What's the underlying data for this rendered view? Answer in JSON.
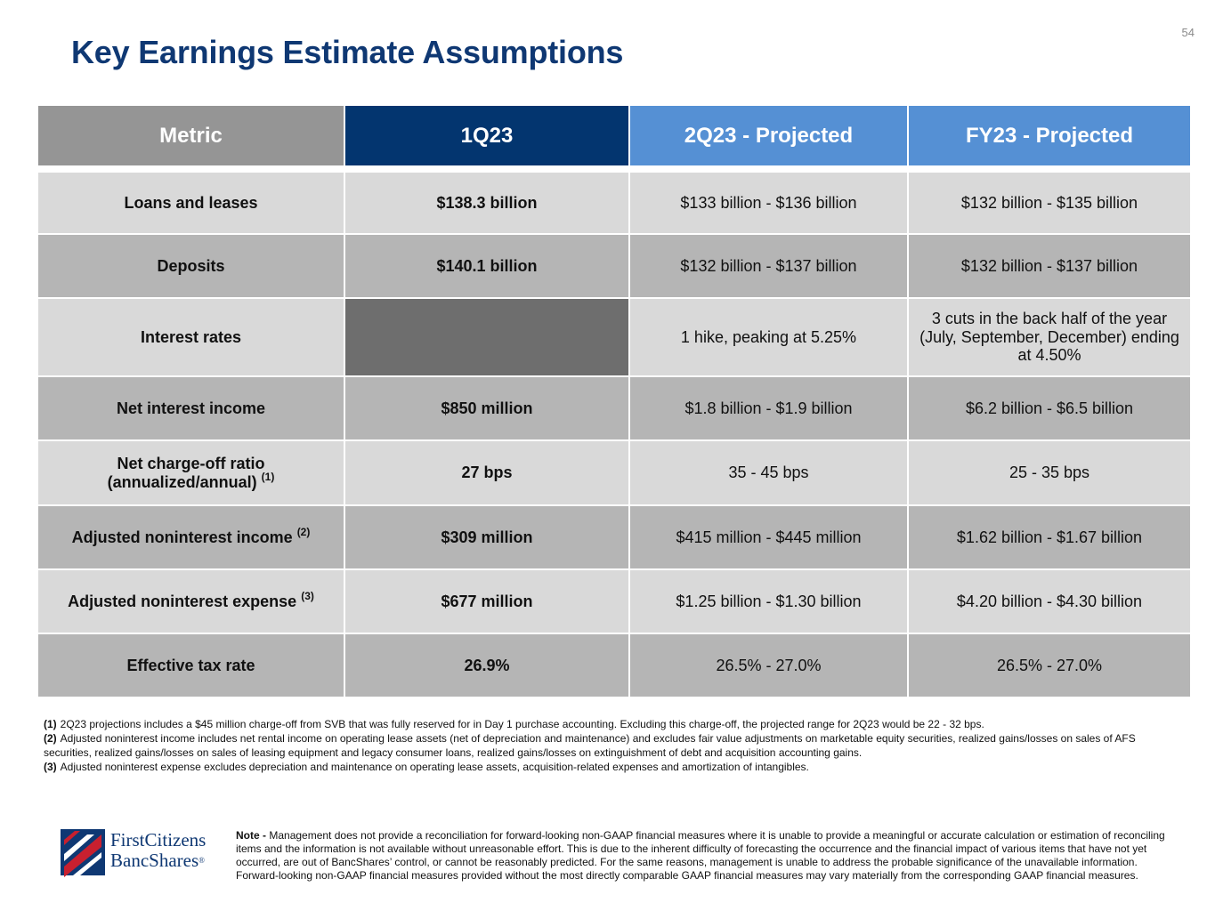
{
  "page_number": "54",
  "title": "Key Earnings Estimate Assumptions",
  "table": {
    "headers": [
      "Metric",
      "1Q23",
      "2Q23 - Projected",
      "FY23 - Projected"
    ],
    "rows": [
      {
        "metric": "Loans and leases",
        "sup": "",
        "q1": "$138.3 billion",
        "q2": "$133 billion - $136 billion",
        "fy": "$132 billion - $135 billion"
      },
      {
        "metric": "Deposits",
        "sup": "",
        "q1": "$140.1 billion",
        "q2": "$132 billion - $137 billion",
        "fy": "$132 billion - $137 billion"
      },
      {
        "metric": "Interest rates",
        "sup": "",
        "q1": "",
        "q2": "1 hike, peaking at 5.25%",
        "fy": "3 cuts in the back half of the year (July, September, December) ending at 4.50%"
      },
      {
        "metric": "Net interest income",
        "sup": "",
        "q1": "$850 million",
        "q2": "$1.8 billion - $1.9 billion",
        "fy": "$6.2 billion - $6.5 billion"
      },
      {
        "metric": "Net charge-off ratio (annualized/annual)",
        "sup": "(1)",
        "q1": "27 bps",
        "q2": "35 - 45 bps",
        "fy": "25 - 35 bps"
      },
      {
        "metric": "Adjusted noninterest income",
        "sup": "(2)",
        "q1": "$309 million",
        "q2": "$415 million - $445 million",
        "fy": "$1.62 billion - $1.67 billion"
      },
      {
        "metric": "Adjusted noninterest expense",
        "sup": "(3)",
        "q1": "$677 million",
        "q2": "$1.25 billion - $1.30 billion",
        "fy": "$4.20 billion - $4.30 billion"
      },
      {
        "metric": "Effective tax rate",
        "sup": "",
        "q1": "26.9%",
        "q2": "26.5% - 27.0%",
        "fy": "26.5% - 27.0%"
      }
    ]
  },
  "footnotes": [
    {
      "num": "(1)",
      "text": "2Q23 projections includes a $45 million charge-off from SVB that was fully reserved for in Day 1 purchase accounting. Excluding this charge-off, the projected range for 2Q23 would be 22 - 32 bps."
    },
    {
      "num": "(2)",
      "text": "Adjusted noninterest income includes net rental income on operating lease assets (net of depreciation and maintenance) and excludes fair value adjustments on marketable equity securities, realized gains/losses on sales of AFS securities, realized gains/losses on sales of leasing equipment and legacy consumer loans, realized gains/losses on extinguishment of debt and acquisition accounting gains."
    },
    {
      "num": "(3)",
      "text": "Adjusted noninterest expense excludes depreciation and maintenance on operating lease assets, acquisition-related expenses and amortization of intangibles."
    }
  ],
  "logo": {
    "line1": "FirstCitizens",
    "line2": "BancShares",
    "reg": "®"
  },
  "note": {
    "label": "Note -",
    "text": "Management does not provide a reconciliation for forward-looking non-GAAP financial measures where it is unable to provide a meaningful or accurate calculation or estimation of reconciling items and the information is not available without unreasonable effort. This is due to the inherent difficulty of forecasting the occurrence and the financial impact of various items that have not yet occurred, are out of BancShares’ control, or cannot be reasonably predicted.  For the same reasons, management is unable to address the probable significance of the unavailable information.  Forward-looking non-GAAP financial measures provided without the most directly comparable GAAP financial measures may vary materially from the corresponding GAAP financial measures."
  },
  "colors": {
    "title": "#0f3873",
    "header_metric": "#959595",
    "header_1q23": "#03356f",
    "header_projected": "#5590d4",
    "row_light": "#d9d9d9",
    "row_dark": "#b5b5b5",
    "blank_cell": "#6e6e6e",
    "logo_red": "#c8202f"
  }
}
